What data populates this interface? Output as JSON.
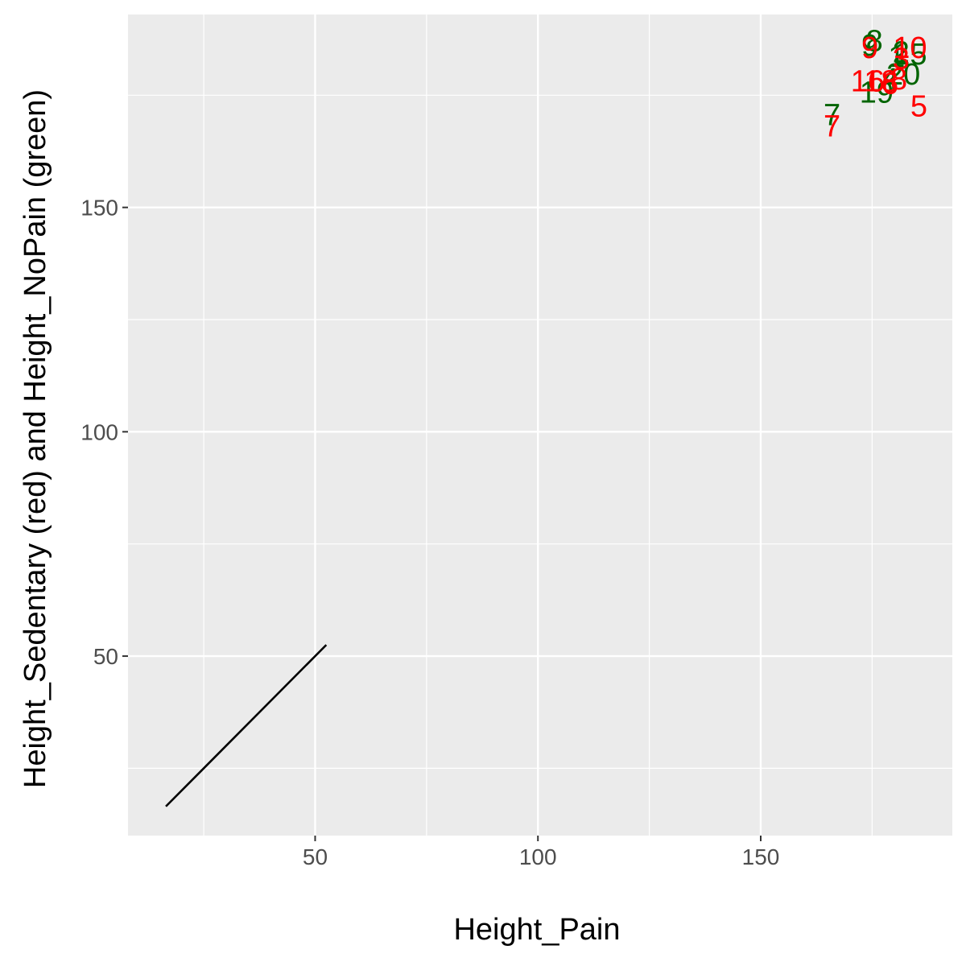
{
  "chart_data": {
    "type": "scatter",
    "xlabel": "Height_Pain",
    "ylabel": "Height_Sedentary (red) and Height_NoPain (green)",
    "xlim": [
      8,
      193
    ],
    "ylim": [
      10,
      193
    ],
    "x_ticks": [
      50,
      100,
      150
    ],
    "y_ticks": [
      50,
      100,
      150
    ],
    "grid": true,
    "panel_background": "#ebebeb",
    "gridline_color": "#ffffff",
    "series": [
      {
        "color": "#006400",
        "points": [
          {
            "label": "8",
            "x": 175.5,
            "y": 187.0
          },
          {
            "label": "9",
            "x": 174.5,
            "y": 186.0
          },
          {
            "label": "15",
            "x": 183.5,
            "y": 184.0
          },
          {
            "label": "2",
            "x": 181.5,
            "y": 184.5
          },
          {
            "label": "1",
            "x": 180.5,
            "y": 183.5
          },
          {
            "label": "20",
            "x": 182.0,
            "y": 179.5
          },
          {
            "label": "4",
            "x": 179.0,
            "y": 178.5
          },
          {
            "label": "19",
            "x": 176.0,
            "y": 175.5
          },
          {
            "label": "7",
            "x": 166.0,
            "y": 170.5
          }
        ]
      },
      {
        "color": "#ff0000",
        "points": [
          {
            "label": "9",
            "x": 174.5,
            "y": 185.5
          },
          {
            "label": "10",
            "x": 183.5,
            "y": 185.5
          },
          {
            "label": "3",
            "x": 181.5,
            "y": 183.0
          },
          {
            "label": "18",
            "x": 177.0,
            "y": 178.0
          },
          {
            "label": "16",
            "x": 174.0,
            "y": 178.0
          },
          {
            "label": "6",
            "x": 179.0,
            "y": 177.5
          },
          {
            "label": "8",
            "x": 181.0,
            "y": 178.5
          },
          {
            "label": "5",
            "x": 185.5,
            "y": 172.5
          },
          {
            "label": "7",
            "x": 166.0,
            "y": 168.0
          }
        ]
      }
    ],
    "reference_line": {
      "color": "#000000",
      "from": [
        16.5,
        16.5
      ],
      "to": [
        52.5,
        52.5
      ]
    }
  }
}
